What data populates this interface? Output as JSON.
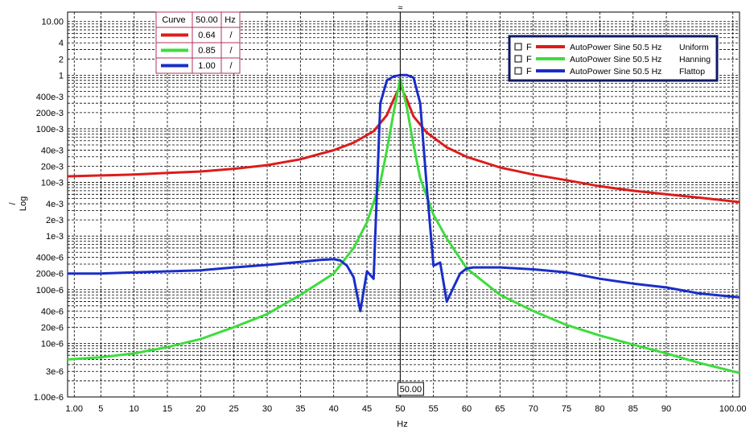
{
  "chart_data": {
    "type": "line",
    "xlabel": "Hz",
    "ylabel": "/",
    "ylabel_scale": "Log",
    "x_range": [
      0,
      101
    ],
    "y_range": [
      1e-06,
      15
    ],
    "y_scale": "log",
    "grid": true,
    "x_ticks": [
      {
        "value": 1,
        "label": "1.00"
      },
      {
        "value": 5,
        "label": "5"
      },
      {
        "value": 10,
        "label": "10"
      },
      {
        "value": 15,
        "label": "15"
      },
      {
        "value": 20,
        "label": "20"
      },
      {
        "value": 25,
        "label": "25"
      },
      {
        "value": 30,
        "label": "30"
      },
      {
        "value": 35,
        "label": "35"
      },
      {
        "value": 40,
        "label": "40"
      },
      {
        "value": 45,
        "label": "45"
      },
      {
        "value": 50,
        "label": "50"
      },
      {
        "value": 55,
        "label": "55"
      },
      {
        "value": 60,
        "label": "60"
      },
      {
        "value": 65,
        "label": "65"
      },
      {
        "value": 70,
        "label": "70"
      },
      {
        "value": 75,
        "label": "75"
      },
      {
        "value": 80,
        "label": "80"
      },
      {
        "value": 85,
        "label": "85"
      },
      {
        "value": 90,
        "label": "90"
      },
      {
        "value": 100,
        "label": "100.00"
      }
    ],
    "y_ticks": [
      {
        "value": 10,
        "label": "10.00"
      },
      {
        "value": 4,
        "label": "4"
      },
      {
        "value": 2,
        "label": "2"
      },
      {
        "value": 1,
        "label": "1"
      },
      {
        "value": 0.4,
        "label": "400e-3"
      },
      {
        "value": 0.2,
        "label": "200e-3"
      },
      {
        "value": 0.1,
        "label": "100e-3"
      },
      {
        "value": 0.04,
        "label": "40e-3"
      },
      {
        "value": 0.02,
        "label": "20e-3"
      },
      {
        "value": 0.01,
        "label": "10e-3"
      },
      {
        "value": 0.004,
        "label": "4e-3"
      },
      {
        "value": 0.002,
        "label": "2e-3"
      },
      {
        "value": 0.001,
        "label": "1e-3"
      },
      {
        "value": 0.0004,
        "label": "400e-6"
      },
      {
        "value": 0.0002,
        "label": "200e-6"
      },
      {
        "value": 0.0001,
        "label": "100e-6"
      },
      {
        "value": 4e-05,
        "label": "40e-6"
      },
      {
        "value": 2e-05,
        "label": "20e-6"
      },
      {
        "value": 1e-05,
        "label": "10e-6"
      },
      {
        "value": 3e-06,
        "label": "3e-6"
      },
      {
        "value": 1e-06,
        "label": "1.00e-6"
      }
    ],
    "series": [
      {
        "name": "AutoPower Sine 50.5 Hz",
        "window": "Uniform",
        "color": "#dd1c1c",
        "cursor_value": "0.64",
        "x": [
          0,
          5,
          10,
          15,
          20,
          25,
          30,
          35,
          40,
          43,
          46,
          48,
          49,
          50,
          51,
          52,
          54,
          57,
          60,
          65,
          70,
          75,
          80,
          85,
          90,
          95,
          101
        ],
        "y": [
          0.013,
          0.0135,
          0.014,
          0.015,
          0.016,
          0.018,
          0.021,
          0.027,
          0.04,
          0.055,
          0.09,
          0.18,
          0.35,
          0.64,
          0.35,
          0.17,
          0.085,
          0.045,
          0.03,
          0.019,
          0.014,
          0.011,
          0.0085,
          0.007,
          0.006,
          0.0052,
          0.0043
        ]
      },
      {
        "name": "AutoPower Sine 50.5 Hz",
        "window": "Hanning",
        "color": "#3ddc3d",
        "cursor_value": "0.85",
        "x": [
          0,
          5,
          10,
          15,
          20,
          25,
          30,
          35,
          40,
          43,
          45,
          47,
          48,
          49,
          50,
          51,
          52,
          53,
          55,
          57,
          60,
          65,
          70,
          75,
          80,
          85,
          90,
          95,
          101
        ],
        "y": [
          5e-06,
          5.5e-06,
          6.5e-06,
          8.5e-06,
          1.2e-05,
          2e-05,
          3.5e-05,
          8e-05,
          0.0002,
          0.0006,
          0.0018,
          0.01,
          0.04,
          0.2,
          0.85,
          0.25,
          0.05,
          0.012,
          0.0025,
          0.0009,
          0.00025,
          8e-05,
          4e-05,
          2.2e-05,
          1.4e-05,
          9.5e-06,
          6.5e-06,
          4.3e-06,
          2.8e-06
        ]
      },
      {
        "name": "AutoPower Sine 50.5 Hz",
        "window": "Flattop",
        "color": "#1a2ec8",
        "cursor_value": "1.00",
        "x": [
          0,
          5,
          10,
          15,
          20,
          25,
          30,
          35,
          38,
          40,
          41,
          42,
          43,
          44,
          45,
          46,
          47,
          48,
          49,
          50,
          51,
          52,
          53,
          54,
          55,
          56,
          57,
          58,
          59,
          60,
          61,
          65,
          70,
          75,
          80,
          85,
          90,
          95,
          101
        ],
        "y": [
          0.0002,
          0.0002,
          0.00021,
          0.00022,
          0.00023,
          0.00026,
          0.00029,
          0.00033,
          0.00036,
          0.00037,
          0.00035,
          0.00028,
          0.00017,
          4e-05,
          0.00022,
          0.00016,
          0.3,
          0.8,
          0.95,
          1.0,
          1.0,
          0.9,
          0.3,
          0.008,
          0.00028,
          0.00032,
          6e-05,
          0.00011,
          0.0002,
          0.00025,
          0.00026,
          0.00026,
          0.00024,
          0.00021,
          0.00016,
          0.00013,
          0.00011,
          8.5e-05,
          7.2e-05
        ]
      }
    ],
    "cursor_table": {
      "header_name": "Curve",
      "header_value": "50.00",
      "header_unit": "Hz",
      "unit": "/"
    },
    "cursor": {
      "x": 50,
      "label": "50.00",
      "top_marker": "≈"
    },
    "legend": {
      "placement": "top-right",
      "checkbox_flag": "F"
    }
  }
}
